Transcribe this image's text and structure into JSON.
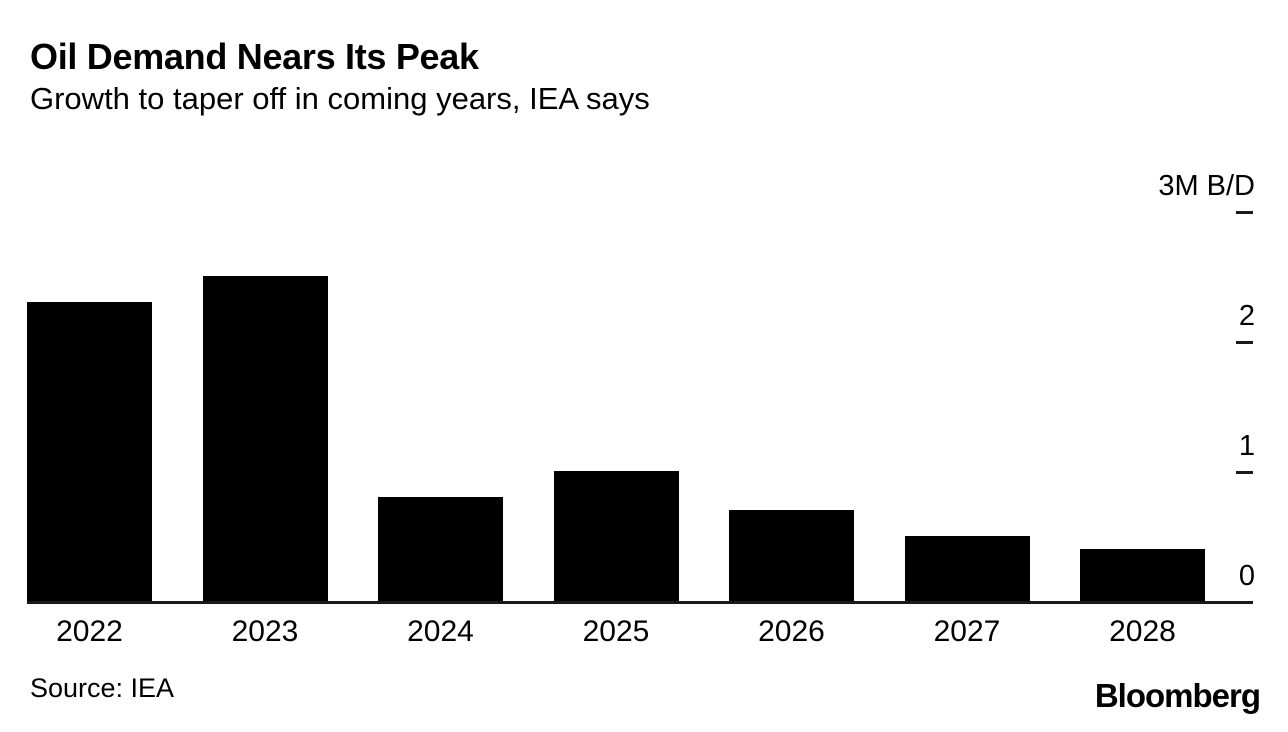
{
  "header": {
    "title": "Oil Demand Nears Its Peak",
    "subtitle": "Growth to taper off in coming years, IEA says"
  },
  "footer": {
    "source": "Source: IEA",
    "brand": "Bloomberg"
  },
  "colors": {
    "background": "#ffffff",
    "bar": "#000000",
    "axis": "#1a1a1a",
    "text": "#000000"
  },
  "chart_data": {
    "type": "bar",
    "title": "Oil Demand Nears Its Peak",
    "subtitle": "Growth to taper off in coming years, IEA says",
    "categories": [
      "2022",
      "2023",
      "2024",
      "2025",
      "2026",
      "2027",
      "2028"
    ],
    "values": [
      2.3,
      2.5,
      0.8,
      1.0,
      0.7,
      0.5,
      0.4
    ],
    "xlabel": "",
    "ylabel": "3M B/D",
    "ylim": [
      0,
      3
    ],
    "grid": false,
    "legend": "none",
    "axis_position": "right",
    "bar_color": "#000000",
    "y_axis": {
      "unit_note": "values in million barrels per day (M B/D)",
      "ticks": [
        {
          "value": 3,
          "label": "3M B/D"
        },
        {
          "value": 2,
          "label": "2"
        },
        {
          "value": 1,
          "label": "1"
        },
        {
          "value": 0,
          "label": "0"
        }
      ]
    },
    "source": "Source: IEA",
    "brand": "Bloomberg"
  }
}
